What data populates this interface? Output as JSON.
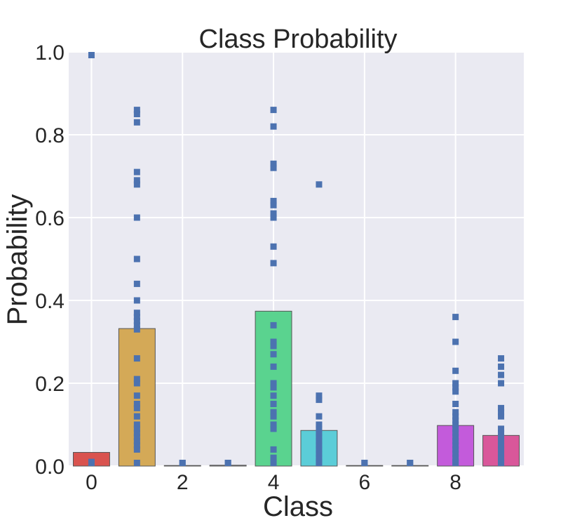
{
  "chart_data": {
    "type": "bar",
    "title": "Class Probability",
    "xlabel": "Class",
    "ylabel": "Probability",
    "ylim": [
      0.0,
      1.0
    ],
    "xlim": [
      -0.5,
      9.5
    ],
    "yticks": [
      "0.0",
      "0.2",
      "0.4",
      "0.6",
      "0.8",
      "1.0"
    ],
    "yticks_values": [
      0.0,
      0.2,
      0.4,
      0.6,
      0.8,
      1.0
    ],
    "xticks": [
      "0",
      "2",
      "4",
      "6",
      "8"
    ],
    "xticks_values": [
      0,
      2,
      4,
      6,
      8
    ],
    "grid": true,
    "categories": [
      0,
      1,
      2,
      3,
      4,
      5,
      6,
      7,
      8,
      9
    ],
    "values": [
      0.033,
      0.332,
      0.001,
      0.002,
      0.374,
      0.086,
      0.001,
      0.001,
      0.098,
      0.074
    ],
    "bar_colors": [
      "#d9534f",
      "#d4a957",
      "#9a9a9a",
      "#9a9a9a",
      "#5ad38f",
      "#5bcdd8",
      "#9a9a9a",
      "#9a9a9a",
      "#c35bdb",
      "#d9579a"
    ],
    "points": {
      "name": "sample probabilities",
      "color": "#4c72b0",
      "by_class": [
        [
          1.0,
          0.01,
          0.005
        ],
        [
          0.86,
          0.85,
          0.83,
          0.71,
          0.69,
          0.68,
          0.6,
          0.5,
          0.44,
          0.4,
          0.37,
          0.36,
          0.35,
          0.34,
          0.33,
          0.26,
          0.21,
          0.2,
          0.17,
          0.15,
          0.14,
          0.12,
          0.1,
          0.09,
          0.08,
          0.07,
          0.06,
          0.05,
          0.04,
          0.002
        ],
        [
          0.005,
          0.002
        ],
        [
          0.006,
          0.003
        ],
        [
          0.86,
          0.82,
          0.73,
          0.72,
          0.64,
          0.63,
          0.61,
          0.6,
          0.53,
          0.49,
          0.34,
          0.3,
          0.29,
          0.27,
          0.24,
          0.2,
          0.19,
          0.17,
          0.15,
          0.13,
          0.12,
          0.1,
          0.09,
          0.04,
          0.02,
          0.002
        ],
        [
          0.68,
          0.17,
          0.16,
          0.12,
          0.1,
          0.09,
          0.08,
          0.07,
          0.06,
          0.05,
          0.04,
          0.03,
          0.02,
          0.01,
          0.004
        ],
        [
          0.005,
          0.002
        ],
        [
          0.005,
          0.002
        ],
        [
          0.36,
          0.3,
          0.23,
          0.2,
          0.19,
          0.18,
          0.15,
          0.13,
          0.12,
          0.11,
          0.1,
          0.09,
          0.08,
          0.07,
          0.06,
          0.05,
          0.04,
          0.03,
          0.02,
          0.01,
          0.004
        ],
        [
          0.26,
          0.24,
          0.22,
          0.2,
          0.14,
          0.13,
          0.12,
          0.09,
          0.08,
          0.07,
          0.06,
          0.05,
          0.04,
          0.03,
          0.02,
          0.01,
          0.004
        ]
      ]
    },
    "colors": {
      "plot_background": "#eaeaf2",
      "grid": "#ffffff",
      "text": "#262626",
      "bar_edge": "#555555"
    }
  }
}
